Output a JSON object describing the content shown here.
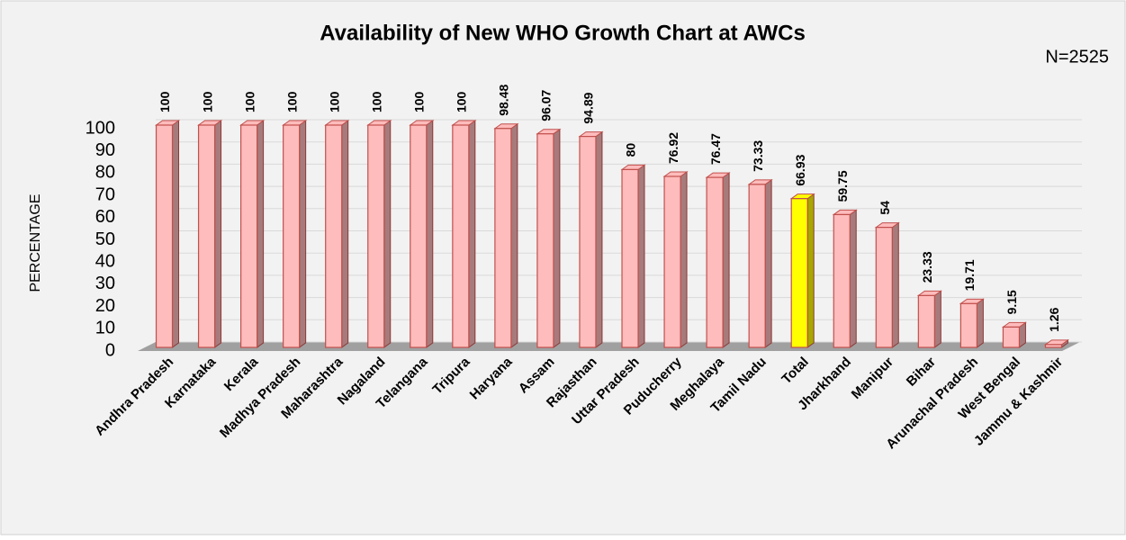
{
  "chart_data": {
    "type": "bar",
    "title": "Availability of New WHO Growth Chart at AWCs",
    "annotation": "N=2525",
    "ylabel": "PERCENTAGE",
    "categories": [
      "Andhra Pradesh",
      "Karnataka",
      "Kerala",
      "Madhya Pradesh",
      "Maharashtra",
      "Nagaland",
      "Telangana",
      "Tripura",
      "Haryana",
      "Assam",
      "Rajasthan",
      "Uttar Pradesh",
      "Puducherry",
      "Meghalaya",
      "Tamil Nadu",
      "Total",
      "Jharkhand",
      "Manipur",
      "Bihar",
      "Arunachal Pradesh",
      "West Bengal",
      "Jammu & Kashmir"
    ],
    "values": [
      100,
      100,
      100,
      100,
      100,
      100,
      100,
      100,
      98.48,
      96.07,
      94.89,
      80,
      76.92,
      76.47,
      73.33,
      66.93,
      59.75,
      54,
      23.33,
      19.71,
      9.15,
      1.26
    ],
    "colors": [
      "#ffbcbc",
      "#ffbcbc",
      "#ffbcbc",
      "#ffbcbc",
      "#ffbcbc",
      "#ffbcbc",
      "#ffbcbc",
      "#ffbcbc",
      "#ffbcbc",
      "#ffbcbc",
      "#ffbcbc",
      "#ffbcbc",
      "#ffbcbc",
      "#ffbcbc",
      "#ffbcbc",
      "#ffff00",
      "#ffbcbc",
      "#ffbcbc",
      "#ffbcbc",
      "#ffbcbc",
      "#ffbcbc",
      "#ffbcbc"
    ],
    "ylim": [
      0,
      100
    ],
    "yticks": [
      0,
      10,
      20,
      30,
      40,
      50,
      60,
      70,
      80,
      90,
      100
    ],
    "grid": true
  }
}
